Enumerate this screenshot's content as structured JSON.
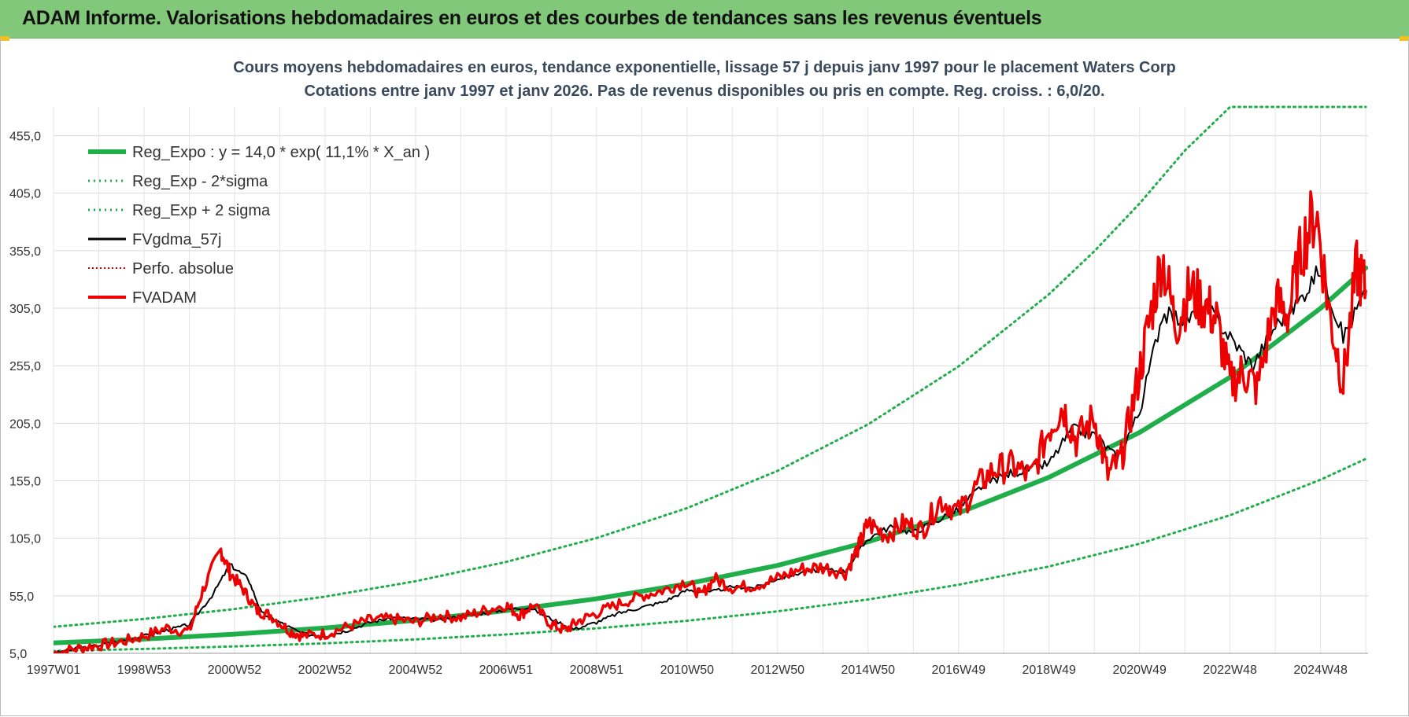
{
  "banner": {
    "title": "ADAM Informe. Valorisations hebdomadaires en euros et des courbes de tendances sans les revenus éventuels"
  },
  "colors": {
    "banner": "#82c87a",
    "reg": "#1fae4a",
    "sigma": "#1fae4a",
    "fvgdma": "#000000",
    "perfo": "#cc0000",
    "fvadam": "#ee0000"
  },
  "chart_data": {
    "type": "line",
    "title_line1": "Cours moyens hebdomadaires en euros, tendance exponentielle, lissage 57 j depuis janv 1997  pour le placement Waters Corp",
    "title_line2": "Cotations entre janv 1997 et janv 2026. Pas de revenus disponibles ou pris en compte. Reg. croiss. : 6,0/20.",
    "xlabel": "",
    "ylabel": "",
    "x_range": [
      1997.0,
      2026.05
    ],
    "ylim": [
      5,
      480
    ],
    "y_ticks": [
      "455,0",
      "405,0",
      "355,0",
      "305,0",
      "255,0",
      "205,0",
      "155,0",
      "105,0",
      "55,0",
      "5,0"
    ],
    "y_tick_values": [
      455,
      405,
      355,
      305,
      255,
      205,
      155,
      105,
      55,
      5
    ],
    "x_ticks": [
      "1997W01",
      "1998W53",
      "2000W52",
      "2002W52",
      "2004W52",
      "2006W51",
      "2008W51",
      "2010W50",
      "2012W50",
      "2014W50",
      "2016W49",
      "2018W49",
      "2020W49",
      "2022W48",
      "2024W48"
    ],
    "x_tick_values": [
      1997.0,
      1999.0,
      2001.0,
      2003.0,
      2005.0,
      2007.0,
      2009.0,
      2011.0,
      2013.0,
      2015.0,
      2017.0,
      2019.0,
      2021.0,
      2023.0,
      2025.0
    ],
    "grid": true,
    "legend_position": "top-left",
    "legend": [
      {
        "label": "Reg_Expo : y = 14,0 * exp( 11,1% *  X_an )",
        "style": "thick-green"
      },
      {
        "label": "Reg_Exp - 2*sigma",
        "style": "dotted-green"
      },
      {
        "label": "Reg_Exp + 2 sigma",
        "style": "dotted-green"
      },
      {
        "label": "FVgdma_57j",
        "style": "black"
      },
      {
        "label": "Perfo. absolue",
        "style": "dotted-red"
      },
      {
        "label": "FVADAM",
        "style": "thick-red"
      }
    ],
    "series": [
      {
        "name": "Reg_Expo : y = 14,0 * exp( 11,1% *  X_an )",
        "x": [
          1997,
          1999,
          2001,
          2003,
          2005,
          2007,
          2009,
          2011,
          2013,
          2015,
          2017,
          2019,
          2021,
          2023,
          2025,
          2026
        ],
        "values": [
          14.0,
          17.4,
          21.7,
          27.1,
          33.7,
          42.1,
          52.4,
          65.4,
          81.4,
          102.0,
          127.0,
          158.0,
          197.0,
          245.0,
          305.0,
          340.0
        ]
      },
      {
        "name": "Reg_Exp - 2*sigma",
        "x": [
          1997,
          1999,
          2001,
          2003,
          2005,
          2007,
          2009,
          2011,
          2013,
          2015,
          2017,
          2019,
          2021,
          2023,
          2025,
          2026
        ],
        "values": [
          7.0,
          8.8,
          11.0,
          13.7,
          17.1,
          21.4,
          26.7,
          33.3,
          41.5,
          51.8,
          64.6,
          80.5,
          100.3,
          125.1,
          155.9,
          174.0
        ]
      },
      {
        "name": "Reg_Exp + 2 sigma",
        "x": [
          1997,
          1999,
          2001,
          2003,
          2005,
          2007,
          2009,
          2011,
          2013,
          2015,
          2017,
          2019,
          2020,
          2021,
          2022,
          2023,
          2024,
          2025,
          2026
        ],
        "values": [
          28.0,
          34.9,
          43.5,
          54.3,
          67.7,
          84.4,
          105.2,
          131.2,
          163.6,
          204.0,
          254.4,
          317.2,
          354.5,
          396.0,
          442.0,
          480.0,
          480.0,
          480.0,
          480.0
        ]
      },
      {
        "name": "FVgdma_57j",
        "x": [
          1997.0,
          1997.5,
          1998.0,
          1998.5,
          1999.0,
          1999.5,
          2000.0,
          2000.5,
          2000.9,
          2001.3,
          2001.6,
          2002.0,
          2002.5,
          2003.0,
          2003.5,
          2004.0,
          2004.5,
          2005.0,
          2005.5,
          2006.0,
          2006.5,
          2007.0,
          2007.5,
          2008.0,
          2008.5,
          2009.0,
          2009.5,
          2010.0,
          2010.5,
          2011.0,
          2011.5,
          2012.0,
          2012.5,
          2013.0,
          2013.5,
          2014.0,
          2014.5,
          2015.0,
          2015.5,
          2016.0,
          2016.5,
          2017.0,
          2017.5,
          2018.0,
          2018.5,
          2019.0,
          2019.5,
          2020.0,
          2020.5,
          2021.0,
          2021.5,
          2022.0,
          2022.5,
          2023.0,
          2023.5,
          2024.0,
          2024.5,
          2025.0,
          2025.5,
          2026.0
        ],
        "values": [
          5,
          9,
          12,
          16,
          20,
          25,
          30,
          55,
          82,
          70,
          40,
          32,
          22,
          20,
          25,
          32,
          36,
          35,
          34,
          37,
          40,
          43,
          45,
          35,
          26,
          32,
          40,
          45,
          50,
          60,
          58,
          63,
          62,
          70,
          75,
          78,
          76,
          105,
          115,
          110,
          120,
          130,
          150,
          160,
          165,
          170,
          200,
          195,
          175,
          215,
          300,
          295,
          305,
          280,
          255,
          290,
          310,
          340,
          280,
          320
        ]
      },
      {
        "name": "FVADAM",
        "x": [
          1997.0,
          1997.5,
          1998.0,
          1998.5,
          1999.0,
          1999.5,
          2000.0,
          2000.3,
          2000.7,
          2000.9,
          2001.2,
          2001.5,
          2001.8,
          2002.2,
          2002.5,
          2003.0,
          2003.5,
          2004.0,
          2004.5,
          2005.0,
          2005.5,
          2006.0,
          2006.5,
          2007.0,
          2007.3,
          2007.6,
          2008.0,
          2008.3,
          2008.6,
          2009.0,
          2009.5,
          2010.0,
          2010.5,
          2011.0,
          2011.3,
          2011.6,
          2012.0,
          2012.5,
          2013.0,
          2013.5,
          2014.0,
          2014.5,
          2014.8,
          2015.0,
          2015.4,
          2015.8,
          2016.2,
          2016.6,
          2017.0,
          2017.4,
          2017.8,
          2018.2,
          2018.6,
          2019.0,
          2019.3,
          2019.6,
          2020.0,
          2020.3,
          2020.6,
          2020.9,
          2021.2,
          2021.5,
          2021.8,
          2022.1,
          2022.4,
          2022.7,
          2023.0,
          2023.3,
          2023.6,
          2024.0,
          2024.3,
          2024.6,
          2024.9,
          2025.2,
          2025.5,
          2025.8,
          2026.0
        ],
        "values": [
          5,
          9,
          12,
          15,
          20,
          27,
          24,
          60,
          95,
          75,
          60,
          42,
          38,
          25,
          20,
          22,
          28,
          34,
          35,
          32,
          38,
          36,
          42,
          47,
          38,
          47,
          30,
          25,
          33,
          40,
          48,
          55,
          60,
          68,
          55,
          70,
          62,
          64,
          70,
          78,
          80,
          75,
          98,
          118,
          108,
          118,
          112,
          138,
          128,
          150,
          165,
          168,
          158,
          200,
          220,
          190,
          210,
          160,
          175,
          230,
          290,
          350,
          290,
          320,
          310,
          295,
          240,
          250,
          235,
          310,
          300,
          360,
          390,
          300,
          240,
          340,
          320
        ]
      }
    ]
  }
}
